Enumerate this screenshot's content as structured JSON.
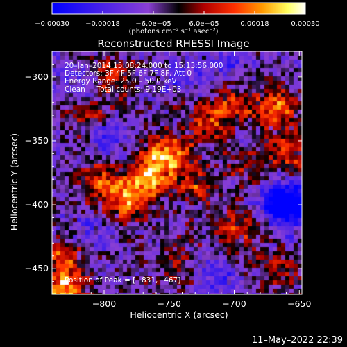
{
  "chart_data": {
    "type": "heatmap",
    "title": "Reconstructed RHESSI Image",
    "xlabel": "Heliocentric X (arcsec)",
    "ylabel": "Heliocentric Y (arcsec)",
    "xlim": [
      -840,
      -648
    ],
    "ylim": [
      -470,
      -280
    ],
    "xticks": [
      -800,
      -750,
      -700,
      -650
    ],
    "xtick_labels": [
      "−800",
      "−750",
      "−700",
      "−650"
    ],
    "yticks": [
      -300,
      -350,
      -400,
      -450
    ],
    "ytick_labels": [
      "−300",
      "−350",
      "−400",
      "−450"
    ],
    "grid": false,
    "colorbar": {
      "range": [
        -0.0003,
        0.0003
      ],
      "ticks": [
        -0.0003,
        -0.00018,
        -6e-05,
        6e-05,
        0.00018,
        0.0003
      ],
      "tick_labels": [
        "−0.00030",
        "−0.00018",
        "−6.0e−05",
        "6.0e−05",
        "0.00018",
        "0.00030"
      ],
      "label": "(photons cm⁻² s⁻¹ asec⁻²)",
      "colors": [
        "#0000ff",
        "#8a3fd4",
        "#000000",
        "#b00000",
        "#ff3000",
        "#ff9a00",
        "#ffff60",
        "#ffffff"
      ]
    },
    "annotations": [
      "20–Jan–2014 15:08:24.000 to 15:13:56.000",
      "Detectors: 3F 4F 5F 6F 7F 8F, Att 0",
      "Energy Range: 25.0 – 50.0 keV",
      "Clean     Total counts: 9.19E+03",
      "Position of Peak = [−831,−467]"
    ],
    "peak_position": [
      -831,
      -467
    ],
    "bright_regions": [
      {
        "x": -780,
        "y": -395,
        "level": 0.9
      },
      {
        "x": -765,
        "y": -375,
        "level": 0.85
      },
      {
        "x": -750,
        "y": -360,
        "level": 0.8
      },
      {
        "x": -805,
        "y": -385,
        "level": 0.6
      },
      {
        "x": -730,
        "y": -385,
        "level": 0.5
      },
      {
        "x": -720,
        "y": -335,
        "level": 0.55
      },
      {
        "x": -700,
        "y": -320,
        "level": 0.5
      },
      {
        "x": -668,
        "y": -325,
        "level": 0.75
      },
      {
        "x": -660,
        "y": -360,
        "level": 0.5
      },
      {
        "x": -810,
        "y": -330,
        "level": 0.4
      },
      {
        "x": -795,
        "y": -300,
        "level": 0.45
      },
      {
        "x": -700,
        "y": -420,
        "level": 0.5
      },
      {
        "x": -665,
        "y": -450,
        "level": 0.4
      },
      {
        "x": -831,
        "y": -440,
        "level": 0.5
      },
      {
        "x": -831,
        "y": -467,
        "level": 1.0
      },
      {
        "x": -740,
        "y": -445,
        "level": 0.35
      },
      {
        "x": -690,
        "y": -370,
        "level": 0.3
      }
    ],
    "dark_regions": [
      {
        "x": -665,
        "y": -395,
        "level": -0.9
      },
      {
        "x": -655,
        "y": -405,
        "level": -0.7
      },
      {
        "x": -800,
        "y": -345,
        "level": -0.45
      },
      {
        "x": -715,
        "y": -455,
        "level": -0.45
      },
      {
        "x": -705,
        "y": -290,
        "level": -0.4
      },
      {
        "x": -820,
        "y": -300,
        "level": -0.35
      },
      {
        "x": -740,
        "y": -300,
        "level": -0.35
      },
      {
        "x": -810,
        "y": -420,
        "level": -0.3
      }
    ]
  },
  "footer": {
    "timestamp": "11–May–2022 22:39"
  }
}
